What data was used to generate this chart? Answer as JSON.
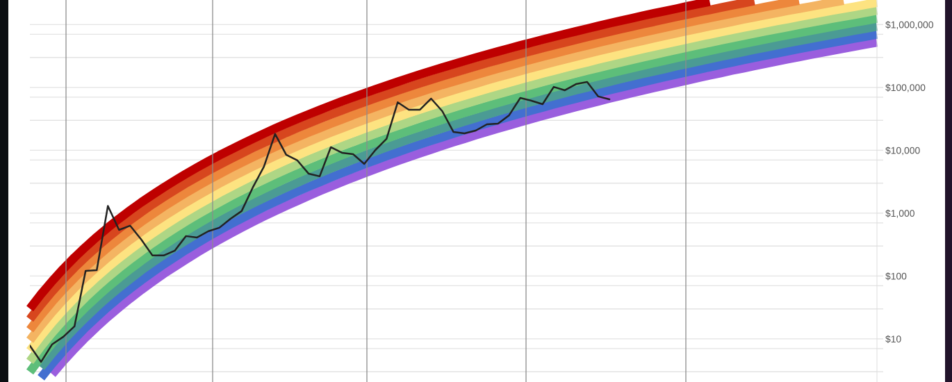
{
  "chart_data": {
    "type": "line",
    "log": true,
    "grid": "y",
    "tick_labels": "y",
    "categories": [
      null,
      null,
      null,
      null,
      null,
      null,
      null,
      null,
      null,
      null,
      null,
      null,
      null,
      null,
      null,
      null,
      null,
      null,
      null,
      null,
      null,
      null,
      null,
      null,
      null,
      null,
      null,
      null,
      null,
      null,
      null,
      null,
      null,
      null,
      null,
      null,
      null,
      null,
      null,
      null,
      null,
      null,
      null,
      null,
      null,
      null,
      null,
      null,
      null,
      null,
      null,
      null,
      null,
      null,
      null,
      null,
      null,
      null,
      null,
      null,
      null,
      null,
      null,
      null,
      null,
      null,
      null,
      null,
      null,
      null,
      null,
      null,
      null,
      null,
      null,
      null,
      null
    ],
    "ylim": [
      2.06,
      2460000
    ],
    "yticks": [
      {
        "value": 3,
        "label": null
      },
      {
        "value": 7,
        "label": null
      },
      {
        "value": 10,
        "label": "$10"
      },
      {
        "value": 30,
        "label": null
      },
      {
        "value": 70,
        "label": null
      },
      {
        "value": 100,
        "label": "$100"
      },
      {
        "value": 300,
        "label": null
      },
      {
        "value": 700,
        "label": null
      },
      {
        "value": 1000,
        "label": "$1,000"
      },
      {
        "value": 3000,
        "label": null
      },
      {
        "value": 7000,
        "label": null
      },
      {
        "value": 10000,
        "label": "$10,000"
      },
      {
        "value": 30000,
        "label": null
      },
      {
        "value": 70000,
        "label": null
      },
      {
        "value": 100000,
        "label": "$100,000"
      },
      {
        "value": 300000,
        "label": null
      },
      {
        "value": 700000,
        "label": null
      },
      {
        "value": 1000000,
        "label": "$1,000,000"
      }
    ],
    "series": [
      {
        "color": "#9a5ede",
        "values": [
          null,
          null,
          2.75,
          4.44,
          6.92,
          10.5,
          15.5,
          22.4,
          31.6,
          43.9,
          60.1,
          80.9,
          108,
          141,
          183,
          236,
          300,
          379,
          474,
          589,
          726,
          889,
          1080,
          1310,
          1570,
          1880,
          2250,
          2660,
          3140,
          3690,
          4320,
          5040,
          5860,
          6780,
          7830,
          9010,
          10300,
          11800,
          13500,
          15300,
          17400,
          19700,
          22200,
          25000,
          28100,
          31500,
          35300,
          39400,
          44000,
          48900,
          54300,
          60200,
          66700,
          73700,
          81400,
          89700,
          98700,
          108000,
          119000,
          130000,
          143000,
          156000,
          170000,
          186000,
          202000,
          220000,
          239000,
          260000,
          282000,
          305000,
          330000,
          357000,
          386000,
          416000,
          449000,
          484000,
          520000
        ]
      },
      {
        "color": "#436fd0",
        "values": [
          null,
          2.41,
          4.02,
          6.46,
          10.0,
          15.2,
          22.3,
          32.2,
          45.4,
          62.9,
          85.8,
          115,
          153,
          200,
          260,
          333,
          424,
          534,
          667,
          827,
          1020,
          1250,
          1510,
          1830,
          2200,
          2630,
          3120,
          3700,
          4360,
          5120,
          5990,
          6970,
          8100,
          9360,
          10800,
          12400,
          14200,
          16200,
          18500,
          21000,
          23800,
          26900,
          30400,
          34200,
          38400,
          43000,
          48100,
          53700,
          59900,
          66500,
          73900,
          81800,
          90600,
          100000,
          110000,
          122000,
          134000,
          147000,
          161000,
          176000,
          193000,
          211000,
          230000,
          250000,
          273000,
          296000,
          322000,
          349000,
          379000,
          410000,
          443000,
          479000,
          517000,
          558000,
          601000,
          647000,
          696000
        ]
      },
      {
        "color": "#4b9b94",
        "values": [
          null,
          3.53,
          5.87,
          9.4,
          14.6,
          21.9,
          32.2,
          46.3,
          65.1,
          90.0,
          123,
          164,
          218,
          285,
          368,
          471,
          598,
          752,
          938,
          1160,
          1430,
          1740,
          2120,
          2550,
          3060,
          3660,
          4340,
          5140,
          6050,
          7100,
          8290,
          9640,
          11200,
          12900,
          14900,
          17100,
          19500,
          22300,
          25400,
          28800,
          32600,
          36900,
          41600,
          46700,
          52500,
          58700,
          65600,
          73200,
          81500,
          90500,
          100000,
          111000,
          123000,
          136000,
          150000,
          165000,
          181000,
          198000,
          218000,
          238000,
          260000,
          284000,
          310000,
          338000,
          367000,
          399000,
          433000,
          470000,
          509000,
          550000,
          595000,
          642000,
          693000,
          747000,
          804000,
          866000,
          931000
        ]
      },
      {
        "color": "#5dbe7a",
        "values": [
          2.98,
          5.17,
          8.57,
          13.7,
          21.1,
          31.7,
          46.4,
          66.5,
          93.4,
          129,
          175,
          234,
          309,
          404,
          522,
          667,
          844,
          1060,
          1320,
          1630,
          2000,
          2440,
          2960,
          3570,
          4270,
          5090,
          6040,
          7140,
          8400,
          9830,
          11500,
          13300,
          15400,
          17800,
          20500,
          23500,
          26900,
          30700,
          34900,
          39600,
          44800,
          50500,
          56900,
          63900,
          71700,
          80100,
          89500,
          99700,
          111000,
          123000,
          137000,
          151000,
          167000,
          184000,
          203000,
          223000,
          245000,
          268000,
          294000,
          322000,
          351000,
          383000,
          418000,
          455000,
          494000,
          537000,
          582000,
          631000,
          683000,
          739000,
          798000,
          861000,
          929000,
          1000000,
          1080000,
          1160000,
          1250000
        ]
      },
      {
        "color": "#aed685",
        "values": [
          4.39,
          7.58,
          12.5,
          19.9,
          30.6,
          45.9,
          67.0,
          95.7,
          134,
          184,
          250,
          334,
          440,
          573,
          739,
          943,
          1190,
          1490,
          1860,
          2290,
          2810,
          3420,
          4140,
          4980,
          5960,
          7100,
          8410,
          9930,
          11700,
          13600,
          15900,
          18400,
          21300,
          24600,
          28300,
          32400,
          37000,
          42200,
          47900,
          54300,
          61400,
          69200,
          77800,
          87400,
          97900,
          109000,
          122000,
          136000,
          151000,
          168000,
          186000,
          205000,
          227000,
          250000,
          275000,
          302000,
          331000,
          363000,
          398000,
          435000,
          474000,
          517000,
          563000,
          613000,
          666000,
          722000,
          784000,
          849000,
          918000,
          992000,
          1070000,
          1160000,
          1250000,
          1340000,
          1440000,
          1550000,
          1670000
        ]
      },
      {
        "color": "#fde381",
        "values": [
          6.46,
          11.1,
          18.3,
          29.0,
          44.4,
          66.3,
          96.6,
          138,
          192,
          264,
          357,
          475,
          626,
          814,
          1050,
          1330,
          1680,
          2110,
          2610,
          3220,
          3940,
          4790,
          5790,
          6960,
          8310,
          9880,
          11700,
          13800,
          16200,
          18900,
          22000,
          25500,
          29500,
          34000,
          39000,
          44600,
          50900,
          58000,
          65800,
          74500,
          84100,
          94800,
          106000,
          119000,
          134000,
          149000,
          167000,
          185000,
          206000,
          228000,
          252000,
          279000,
          308000,
          339000,
          372000,
          409000,
          449000,
          491000,
          537000,
          587000,
          641000,
          698000,
          759000,
          826000,
          897000,
          972000,
          1050000,
          1140000,
          1230000,
          1330000,
          1440000,
          1550000,
          1670000,
          1800000,
          1930000,
          2080000,
          2230000
        ]
      },
      {
        "color": "#f4b462",
        "values": [
          9.51,
          16.3,
          26.7,
          42.2,
          64.5,
          95.9,
          139,
          198,
          276,
          378,
          510,
          677,
          890,
          1150,
          1480,
          1880,
          2370,
          2970,
          3680,
          4520,
          5520,
          6710,
          8100,
          9720,
          11600,
          13800,
          16300,
          19200,
          22400,
          26200,
          30400,
          35300,
          40700,
          46900,
          53800,
          61500,
          70100,
          79700,
          90400,
          102000,
          115000,
          130000,
          146000,
          163000,
          183000,
          204000,
          227000,
          252000,
          280000,
          310000,
          343000,
          379000,
          418000,
          460000,
          505000,
          554000,
          607000,
          665000,
          726000,
          794000,
          865000,
          942000,
          1020000,
          1110000,
          1210000,
          1310000,
          1420000,
          1530000,
          1660000,
          1790000,
          1930000,
          2080000,
          2240000,
          2410000,
          null,
          null,
          null
        ]
      },
      {
        "color": "#ed873c",
        "values": [
          14.0,
          23.9,
          39.0,
          61.3,
          93.5,
          139,
          201,
          285,
          396,
          540,
          728,
          965,
          1270,
          1640,
          2100,
          2670,
          3350,
          4180,
          5170,
          6360,
          7750,
          9400,
          11300,
          13600,
          16200,
          19200,
          22600,
          26600,
          31100,
          36300,
          42200,
          48800,
          56300,
          64700,
          74100,
          84600,
          96400,
          110000,
          124000,
          140000,
          158000,
          178000,
          199000,
          223000,
          250000,
          278000,
          310000,
          344000,
          382000,
          422000,
          466000,
          515000,
          567000,
          624000,
          684000,
          751000,
          822000,
          899000,
          982000,
          1070000,
          1170000,
          1270000,
          1380000,
          1500000,
          1630000,
          1760000,
          1910000,
          2060000,
          2230000,
          2400000,
          null,
          null,
          null,
          null,
          null,
          null,
          null
        ]
      },
      {
        "color": "#d7461e",
        "values": [
          20.6,
          35.0,
          56.9,
          89.3,
          136,
          201,
          290,
          410,
          568,
          773,
          1040,
          1380,
          1800,
          2330,
          2980,
          3770,
          4730,
          5890,
          7280,
          8930,
          10900,
          13200,
          15800,
          19000,
          22600,
          26700,
          31500,
          37000,
          43200,
          50300,
          58400,
          67500,
          77800,
          89300,
          102000,
          117000,
          133000,
          151000,
          170000,
          192000,
          217000,
          244000,
          273000,
          305000,
          341000,
          380000,
          422000,
          469000,
          520000,
          574000,
          634000,
          699000,
          770000,
          847000,
          927000,
          1020000,
          1110000,
          1220000,
          1330000,
          1450000,
          1580000,
          1710000,
          1860000,
          2020000,
          2190000,
          2370000,
          null,
          null,
          null,
          null,
          null,
          null,
          null,
          null,
          null,
          null,
          null
        ]
      },
      {
        "color": "#be0000",
        "values": [
          30.3,
          51.3,
          83.1,
          130,
          197,
          290,
          418,
          589,
          815,
          1110,
          1490,
          1960,
          2560,
          3300,
          4220,
          5330,
          6680,
          8310,
          10200,
          12500,
          15200,
          18400,
          22200,
          26500,
          31500,
          37200,
          43800,
          51500,
          60000,
          69800,
          80800,
          93400,
          107000,
          123000,
          141000,
          161000,
          183000,
          207000,
          234000,
          264000,
          297000,
          333000,
          373000,
          417000,
          466000,
          518000,
          576000,
          639000,
          708000,
          781000,
          862000,
          950000,
          1050000,
          1150000,
          1260000,
          1380000,
          1510000,
          1640000,
          1790000,
          1960000,
          2130000,
          2310000,
          null,
          null,
          null,
          null,
          null,
          null,
          null,
          null,
          null,
          null,
          null,
          null,
          null,
          null,
          null
        ]
      },
      {
        "color": "#222222",
        "values": [
          7.8,
          4.3,
          8.2,
          10.8,
          15.8,
          121,
          124,
          1300,
          542,
          632,
          380,
          212,
          212,
          253,
          432,
          410,
          515,
          586,
          815,
          1080,
          2560,
          5500,
          18200,
          8470,
          6900,
          4260,
          3850,
          11200,
          9140,
          8690,
          6080,
          10100,
          15200,
          58000,
          44200,
          44200,
          66400,
          42000,
          19600,
          18600,
          20600,
          25900,
          26600,
          36100,
          68100,
          61500,
          54200,
          102000,
          90200,
          113000,
          122000,
          71800,
          64700,
          null,
          null,
          null,
          null,
          null,
          null,
          null,
          null,
          null,
          null,
          null,
          null,
          null,
          null,
          null,
          null,
          null,
          null,
          null,
          null,
          null,
          null,
          null,
          null
        ]
      }
    ]
  }
}
